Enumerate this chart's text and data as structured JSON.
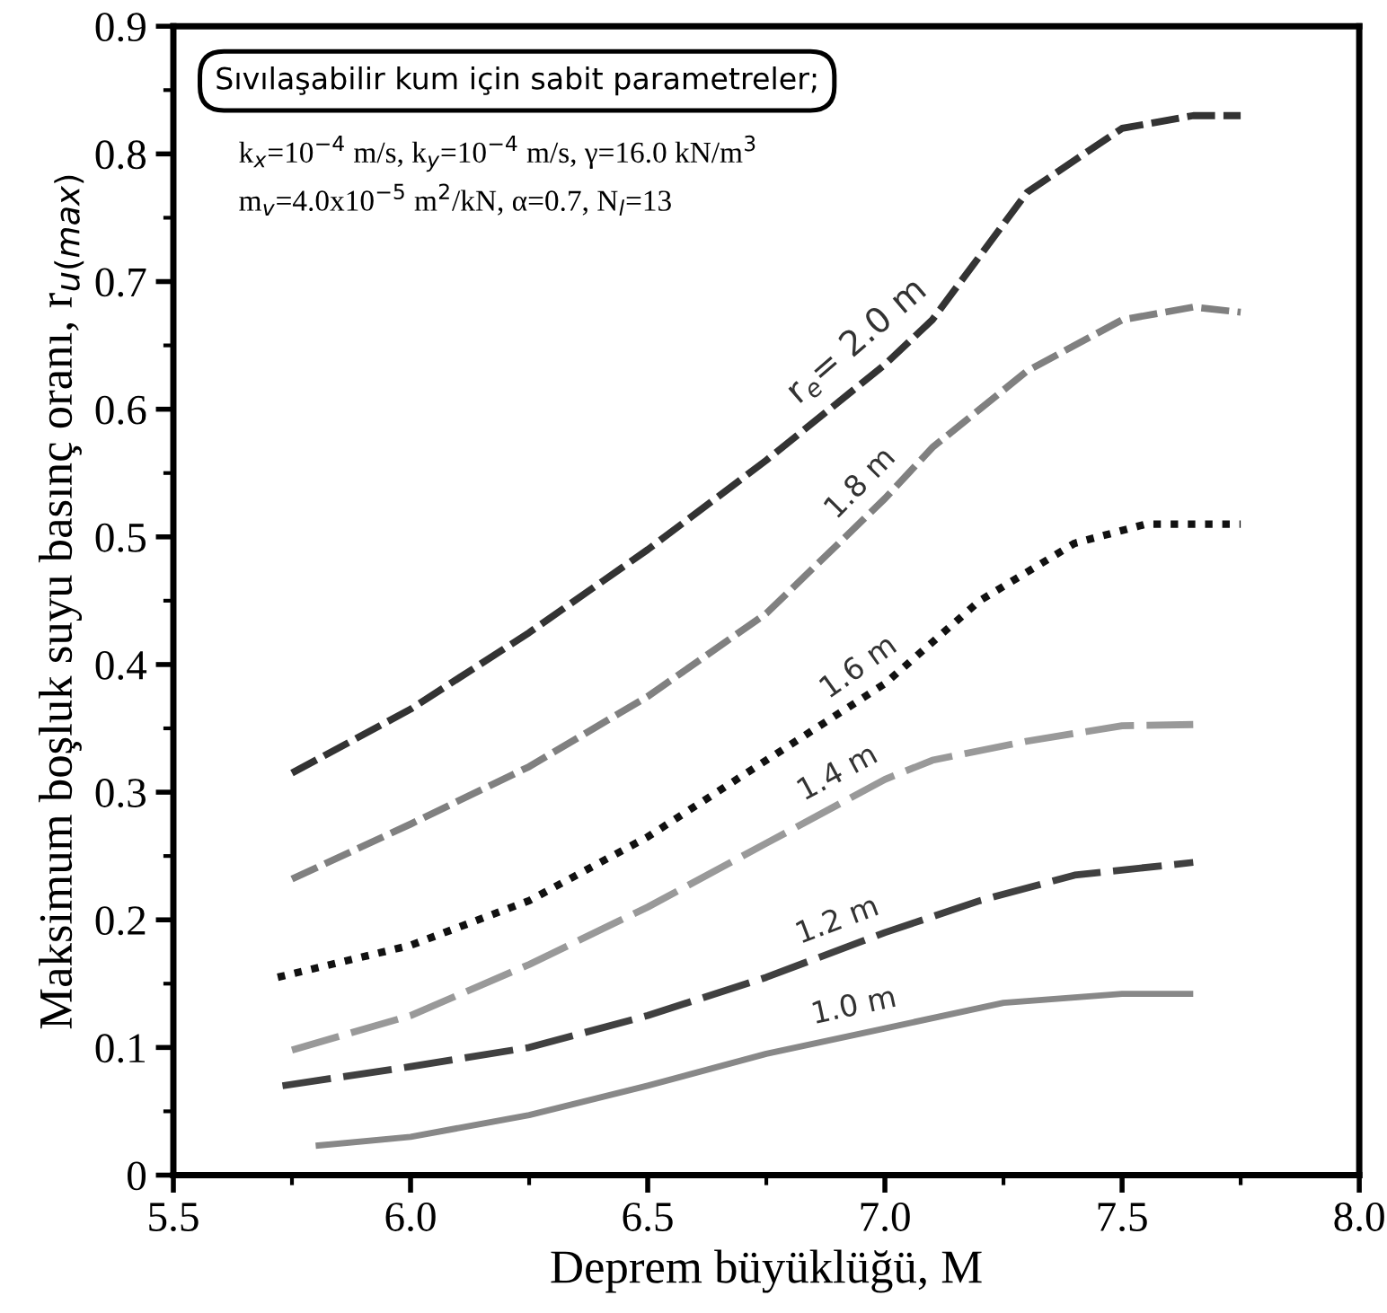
{
  "chart_data": {
    "type": "line",
    "xlabel": "Deprem büyüklüğü, M",
    "ylabel": "Maksimum boşluk suyu basınç oranı, r$_{u(max)}$",
    "annotations": [
      "Sıvılaşabilir kum için sabit parametreler;",
      "k$_{x}$=10$^{−4}$ m/s, k$_{y}$=10$^{−4}$ m/s, γ=16.0 kN/m$^{3}$",
      "m$_{v}$=4.0x10$^{−5}$ m$^{2}$/kN, α=0.7, N$_{l}$=13"
    ],
    "xlim": [
      5.5,
      8.0
    ],
    "ylim": [
      0,
      0.9
    ],
    "xticks": [
      5.5,
      {
        "value": 6.0,
        "label": "6.0"
      },
      6.5,
      {
        "value": 7.0,
        "label": "7.0"
      },
      7.5,
      {
        "value": 8.0,
        "label": "8.0"
      }
    ],
    "yticks": [
      0,
      0.1,
      0.2,
      0.3,
      0.4,
      0.5,
      0.6,
      0.7,
      0.8,
      0.9
    ],
    "grid": false,
    "legend": false,
    "marker": "none",
    "series": [
      {
        "name": "r$_{e}$= 2.0 m",
        "color": "#333333",
        "line_style": "dashed",
        "x": [
          5.75,
          6.0,
          6.25,
          6.5,
          6.75,
          7.0,
          7.1,
          7.2,
          7.3,
          7.5,
          7.65,
          7.75
        ],
        "values": [
          0.315,
          0.365,
          0.425,
          0.49,
          0.56,
          0.635,
          0.67,
          0.72,
          0.77,
          0.82,
          0.83,
          0.83
        ]
      },
      {
        "name": "1.8 m",
        "color": "#808080",
        "line_style": "dashed",
        "x": [
          5.75,
          6.0,
          6.25,
          6.5,
          6.75,
          7.0,
          7.1,
          7.3,
          7.5,
          7.65,
          7.75
        ],
        "values": [
          0.232,
          0.275,
          0.32,
          0.375,
          0.44,
          0.53,
          0.57,
          0.63,
          0.67,
          0.68,
          0.676
        ]
      },
      {
        "name": "1.6 m",
        "color": "#111111",
        "line_style": "dotted",
        "x": [
          5.72,
          6.0,
          6.25,
          6.5,
          6.75,
          7.0,
          7.2,
          7.4,
          7.55,
          7.75
        ],
        "values": [
          0.155,
          0.18,
          0.215,
          0.265,
          0.325,
          0.385,
          0.45,
          0.495,
          0.51,
          0.51
        ]
      },
      {
        "name": "1.4 m",
        "color": "#999999",
        "line_style": "dashed",
        "x": [
          5.75,
          6.0,
          6.25,
          6.5,
          6.75,
          7.0,
          7.1,
          7.3,
          7.5,
          7.65
        ],
        "values": [
          0.098,
          0.125,
          0.165,
          0.21,
          0.26,
          0.31,
          0.325,
          0.34,
          0.352,
          0.353
        ]
      },
      {
        "name": "1.2 m",
        "color": "#404040",
        "line_style": "dashed",
        "x": [
          5.73,
          6.0,
          6.25,
          6.5,
          6.75,
          7.0,
          7.2,
          7.4,
          7.65
        ],
        "values": [
          0.07,
          0.085,
          0.1,
          0.125,
          0.155,
          0.19,
          0.215,
          0.235,
          0.245
        ]
      },
      {
        "name": "1.0 m",
        "color": "#888888",
        "line_style": "solid",
        "x": [
          5.8,
          6.0,
          6.25,
          6.5,
          6.75,
          7.0,
          7.25,
          7.5,
          7.65
        ],
        "values": [
          0.023,
          0.03,
          0.047,
          0.07,
          0.095,
          0.115,
          0.135,
          0.142,
          0.142
        ]
      }
    ]
  }
}
